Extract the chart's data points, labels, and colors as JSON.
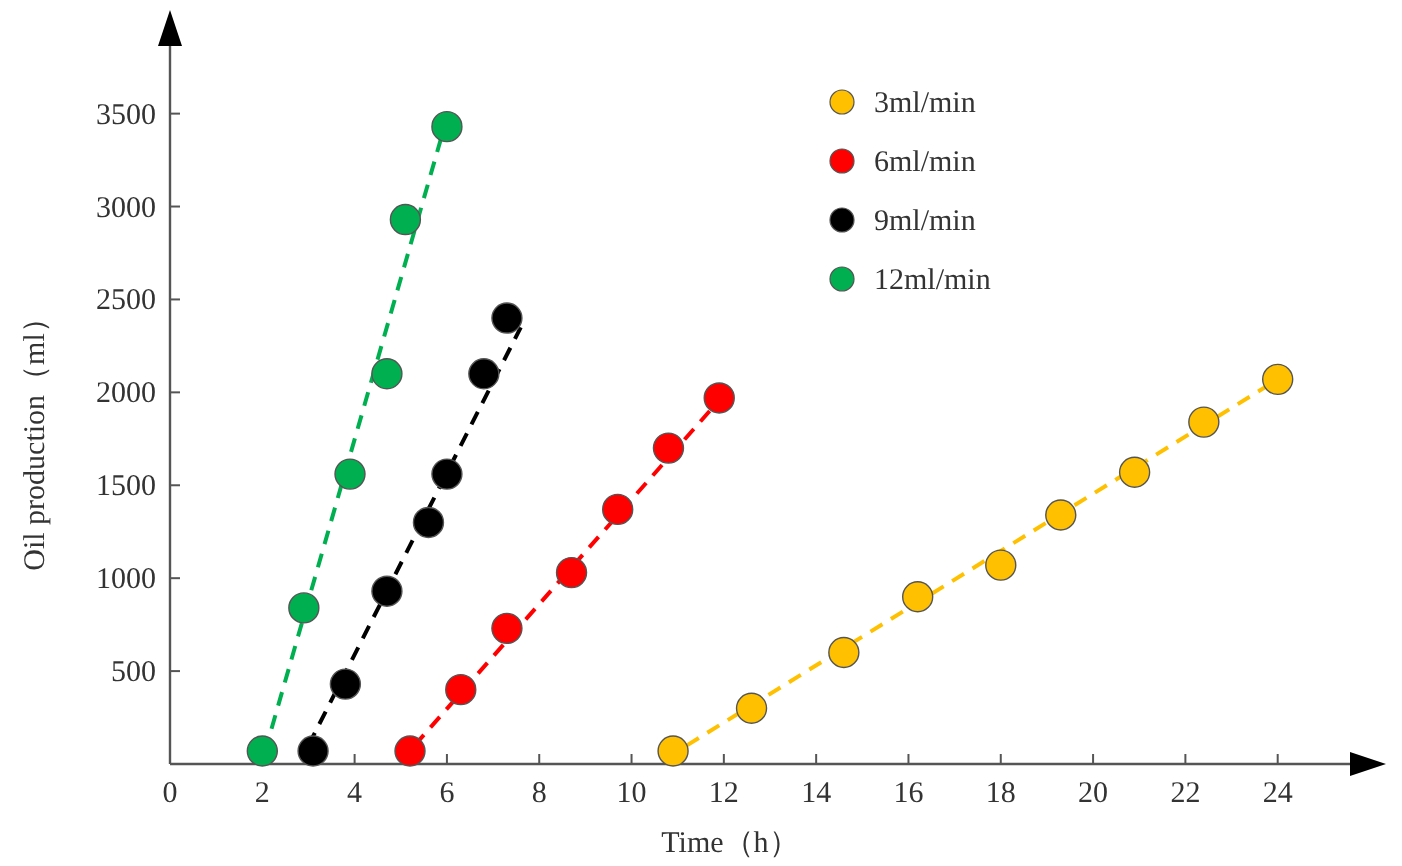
{
  "chart_data": {
    "type": "scatter",
    "xlabel": "Time（h）",
    "ylabel": "Oil production（ml）",
    "xlim": [
      0,
      26
    ],
    "ylim": [
      0,
      3950
    ],
    "xticks": [
      0,
      2,
      4,
      6,
      8,
      10,
      12,
      14,
      16,
      18,
      20,
      22,
      24
    ],
    "yticks": [
      500,
      1000,
      1500,
      2000,
      2500,
      3000,
      3500
    ],
    "grid": false,
    "legend": "top right",
    "marker": "circle",
    "series": [
      {
        "name": "3ml/min",
        "color": "#ffc000",
        "x": [
          10.9,
          12.6,
          14.6,
          16.2,
          18.0,
          19.3,
          20.9,
          22.4,
          24.0
        ],
        "values": [
          70,
          300,
          600,
          900,
          1070,
          1340,
          1570,
          1840,
          2070
        ]
      },
      {
        "name": "6ml/min",
        "color": "#ff0000",
        "x": [
          5.2,
          6.3,
          7.3,
          8.7,
          9.7,
          10.8,
          11.9
        ],
        "values": [
          70,
          400,
          730,
          1030,
          1370,
          1700,
          1970
        ]
      },
      {
        "name": "9ml/min",
        "color": "#000000",
        "x": [
          3.1,
          3.8,
          4.7,
          5.6,
          6.0,
          6.8,
          7.3
        ],
        "values": [
          70,
          430,
          930,
          1300,
          1560,
          2100,
          2400
        ]
      },
      {
        "name": "12ml/min",
        "color": "#00b050",
        "x": [
          2.0,
          2.9,
          3.9,
          4.7,
          5.1,
          6.0
        ],
        "values": [
          70,
          840,
          1560,
          2100,
          2930,
          3430
        ]
      },
      {
        "type": "line",
        "marker": "none",
        "line_style": "dashed",
        "color": "#ffc000",
        "x": [
          11.2,
          24.0
        ],
        "values": [
          100,
          2070
        ]
      },
      {
        "type": "line",
        "marker": "none",
        "line_style": "dashed",
        "color": "#ff0000",
        "x": [
          5.3,
          11.8
        ],
        "values": [
          100,
          1930
        ]
      },
      {
        "type": "line",
        "marker": "none",
        "line_style": "dashed",
        "color": "#000000",
        "x": [
          3.0,
          7.6
        ],
        "values": [
          100,
          2350
        ]
      },
      {
        "type": "line",
        "marker": "none",
        "line_style": "dashed",
        "color": "#00b050",
        "x": [
          2.2,
          5.9
        ],
        "values": [
          190,
          3390
        ]
      }
    ]
  }
}
